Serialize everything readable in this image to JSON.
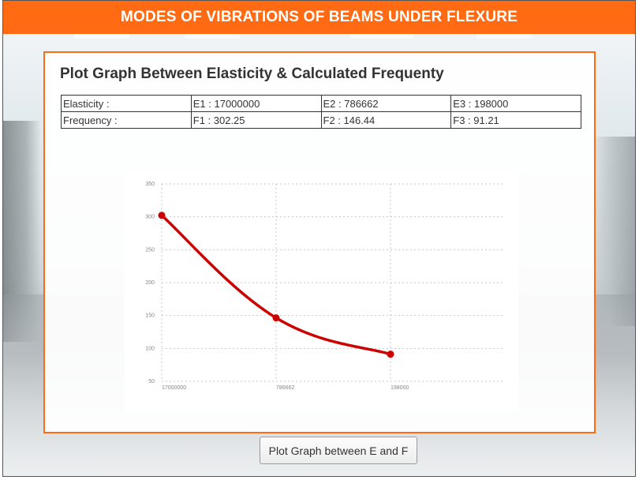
{
  "header": {
    "title": "MODES OF VIBRATIONS OF BEAMS UNDER FLEXURE"
  },
  "panel": {
    "title": "Plot Graph Between Elasticity & Calculated Frequenty",
    "table": {
      "rows": [
        [
          "Elasticity :",
          "E1 : 17000000",
          "E2 : 786662",
          "E3 : 198000"
        ],
        [
          "Frequency :",
          "F1 : 302.25",
          "F2 : 146.44",
          "F3 : 91.21"
        ]
      ]
    }
  },
  "chart_data": {
    "type": "line",
    "categories": [
      "17000000",
      "786662",
      "198000"
    ],
    "series": [
      {
        "values": [
          302.25,
          146.44,
          91.21
        ],
        "color": "#cc0000"
      }
    ],
    "title": "",
    "xlabel": "",
    "ylabel": "",
    "ylim": [
      50,
      350
    ],
    "yticks": [
      50,
      100,
      150,
      200,
      250,
      300,
      350
    ],
    "grid": true
  },
  "actions": {
    "plot_button_label": "Plot Graph between E and F"
  }
}
